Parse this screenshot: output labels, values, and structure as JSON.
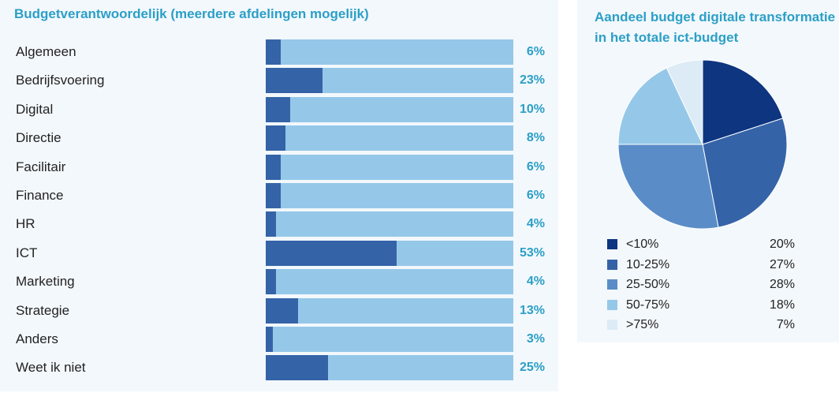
{
  "chart_data": [
    {
      "type": "bar",
      "orientation": "horizontal",
      "title": "Budgetverantwoordelijk (meerdere afdelingen mogelijk)",
      "categories": [
        "Algemeen",
        "Bedrijfsvoering",
        "Digital",
        "Directie",
        "Facilitair",
        "Finance",
        "HR",
        "ICT",
        "Marketing",
        "Strategie",
        "Anders",
        "Weet ik niet"
      ],
      "values": [
        6,
        23,
        10,
        8,
        6,
        6,
        4,
        53,
        4,
        13,
        3,
        25
      ],
      "value_labels": [
        "6%",
        "23%",
        "10%",
        "8%",
        "6%",
        "6%",
        "4%",
        "53%",
        "4%",
        "13%",
        "3%",
        "25%"
      ],
      "xlim": [
        0,
        100
      ],
      "colors": {
        "fill": "#3563a8",
        "track": "#95c8e8",
        "label": "#2b9fc7"
      }
    },
    {
      "type": "pie",
      "title": [
        "Aandeel budget digitale transformatie",
        "in het totale ict-budget"
      ],
      "legend_position": "bottom",
      "slices": [
        {
          "label": "<10%",
          "value": 20,
          "value_label": "20%",
          "color": "#0d3580"
        },
        {
          "label": "10-25%",
          "value": 27,
          "value_label": "27%",
          "color": "#3563a8"
        },
        {
          "label": "25-50%",
          "value": 28,
          "value_label": "28%",
          "color": "#5a8dc8"
        },
        {
          "label": "50-75%",
          "value": 18,
          "value_label": "18%",
          "color": "#95c8e8"
        },
        {
          "label": ">75%",
          "value": 7,
          "value_label": "7%",
          "color": "#dcebf5"
        }
      ]
    }
  ]
}
